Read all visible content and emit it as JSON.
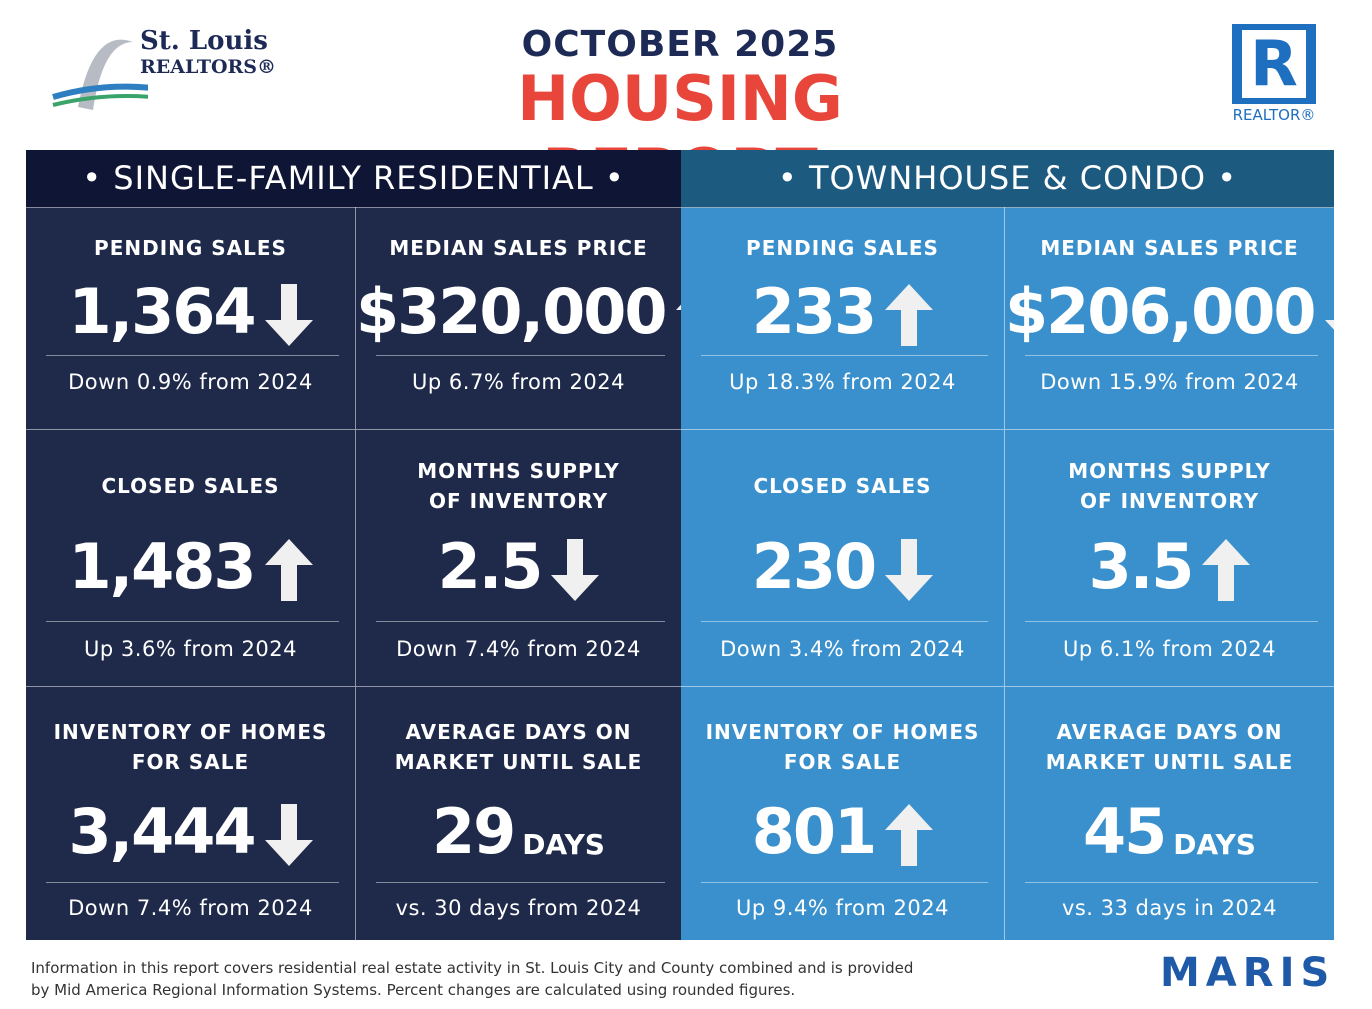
{
  "header": {
    "logo_left": {
      "line1": "St. Louis",
      "line2": "REALTORS®"
    },
    "month": "OCTOBER 2025",
    "title": "HOUSING REPORT",
    "logo_right": "REALTOR®"
  },
  "sections": [
    {
      "title": "• SINGLE-FAMILY RESIDENTIAL •",
      "cells": [
        {
          "label": [
            "PENDING SALES"
          ],
          "value": "1,364",
          "arrow": "down",
          "change": "Down 0.9% from 2024"
        },
        {
          "label": [
            "MEDIAN SALES PRICE"
          ],
          "value": "$320,000",
          "arrow": "up",
          "change": "Up 6.7% from 2024"
        },
        {
          "label": [
            "CLOSED SALES"
          ],
          "value": "1,483",
          "arrow": "up",
          "change": "Up 3.6% from 2024"
        },
        {
          "label": [
            "MONTHS SUPPLY",
            "OF INVENTORY"
          ],
          "value": "2.5",
          "arrow": "down",
          "change": "Down 7.4% from 2024"
        },
        {
          "label": [
            "INVENTORY OF HOMES",
            "FOR SALE"
          ],
          "value": "3,444",
          "arrow": "down",
          "change": "Down 7.4% from 2024"
        },
        {
          "label": [
            "AVERAGE DAYS ON",
            "MARKET UNTIL SALE"
          ],
          "value": "29",
          "unit": "DAYS",
          "change": "vs. 30 days from 2024"
        }
      ]
    },
    {
      "title": "• TOWNHOUSE & CONDO •",
      "cells": [
        {
          "label": [
            "PENDING SALES"
          ],
          "value": "233",
          "arrow": "up",
          "change": "Up 18.3% from 2024"
        },
        {
          "label": [
            "MEDIAN SALES PRICE"
          ],
          "value": "$206,000",
          "arrow": "down",
          "change": "Down 15.9% from 2024"
        },
        {
          "label": [
            "CLOSED SALES"
          ],
          "value": "230",
          "arrow": "down",
          "change": "Down 3.4% from 2024"
        },
        {
          "label": [
            "MONTHS SUPPLY",
            "OF INVENTORY"
          ],
          "value": "3.5",
          "arrow": "up",
          "change": "Up 6.1% from 2024"
        },
        {
          "label": [
            "INVENTORY OF HOMES",
            "FOR SALE"
          ],
          "value": "801",
          "arrow": "up",
          "change": "Up 9.4% from 2024"
        },
        {
          "label": [
            "AVERAGE DAYS ON",
            "MARKET UNTIL SALE"
          ],
          "value": "45",
          "unit": "DAYS",
          "change": "vs. 33 days in 2024"
        }
      ]
    }
  ],
  "footer": {
    "lines": [
      "Information in this report covers residential real estate activity in St. Louis City and County combined and is provided",
      "by Mid America Regional Information Systems. Percent changes are calculated using rounded figures."
    ],
    "logo": "MARIS"
  }
}
